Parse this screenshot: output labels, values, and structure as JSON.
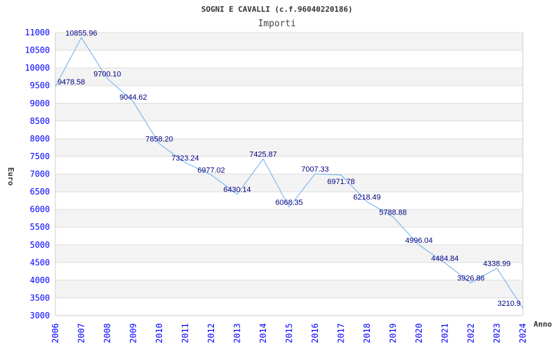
{
  "chart_data": {
    "type": "line",
    "title": "SOGNI E CAVALLI (c.f.96040220186)",
    "subtitle": "Importi",
    "xlabel": "Anno",
    "ylabel": "Euro",
    "ylim": [
      3000,
      11000
    ],
    "yticks": [
      3000,
      3500,
      4000,
      4500,
      5000,
      5500,
      6000,
      6500,
      7000,
      7500,
      8000,
      8500,
      9000,
      9500,
      10000,
      10500,
      11000
    ],
    "x": [
      2006,
      2007,
      2008,
      2009,
      2010,
      2011,
      2012,
      2013,
      2014,
      2015,
      2016,
      2017,
      2018,
      2019,
      2020,
      2021,
      2022,
      2023,
      2024
    ],
    "values": [
      9478.58,
      10855.96,
      9700.1,
      9044.62,
      7858.2,
      7323.24,
      6977.02,
      6430.14,
      7425.87,
      6068.35,
      7007.33,
      6971.78,
      6218.49,
      5788.88,
      4996.04,
      4484.84,
      3926.86,
      4338.99,
      3210.9
    ],
    "labels": [
      "9478.58",
      "10855.96",
      "9700.10",
      "9044.62",
      "7858.20",
      "7323.24",
      "6977.02",
      "6430.14",
      "7425.87",
      "6068.35",
      "7007.33",
      "6971.78",
      "6218.49",
      "5788.88",
      "4996.04",
      "4484.84",
      "3926.86",
      "4338.99",
      "3210.9"
    ],
    "grid": true,
    "colors": {
      "line": "#6aaeee",
      "tick": "#0000ff",
      "label": "#000080",
      "band": "#f3f3f3",
      "grid": "#dddddd"
    }
  }
}
